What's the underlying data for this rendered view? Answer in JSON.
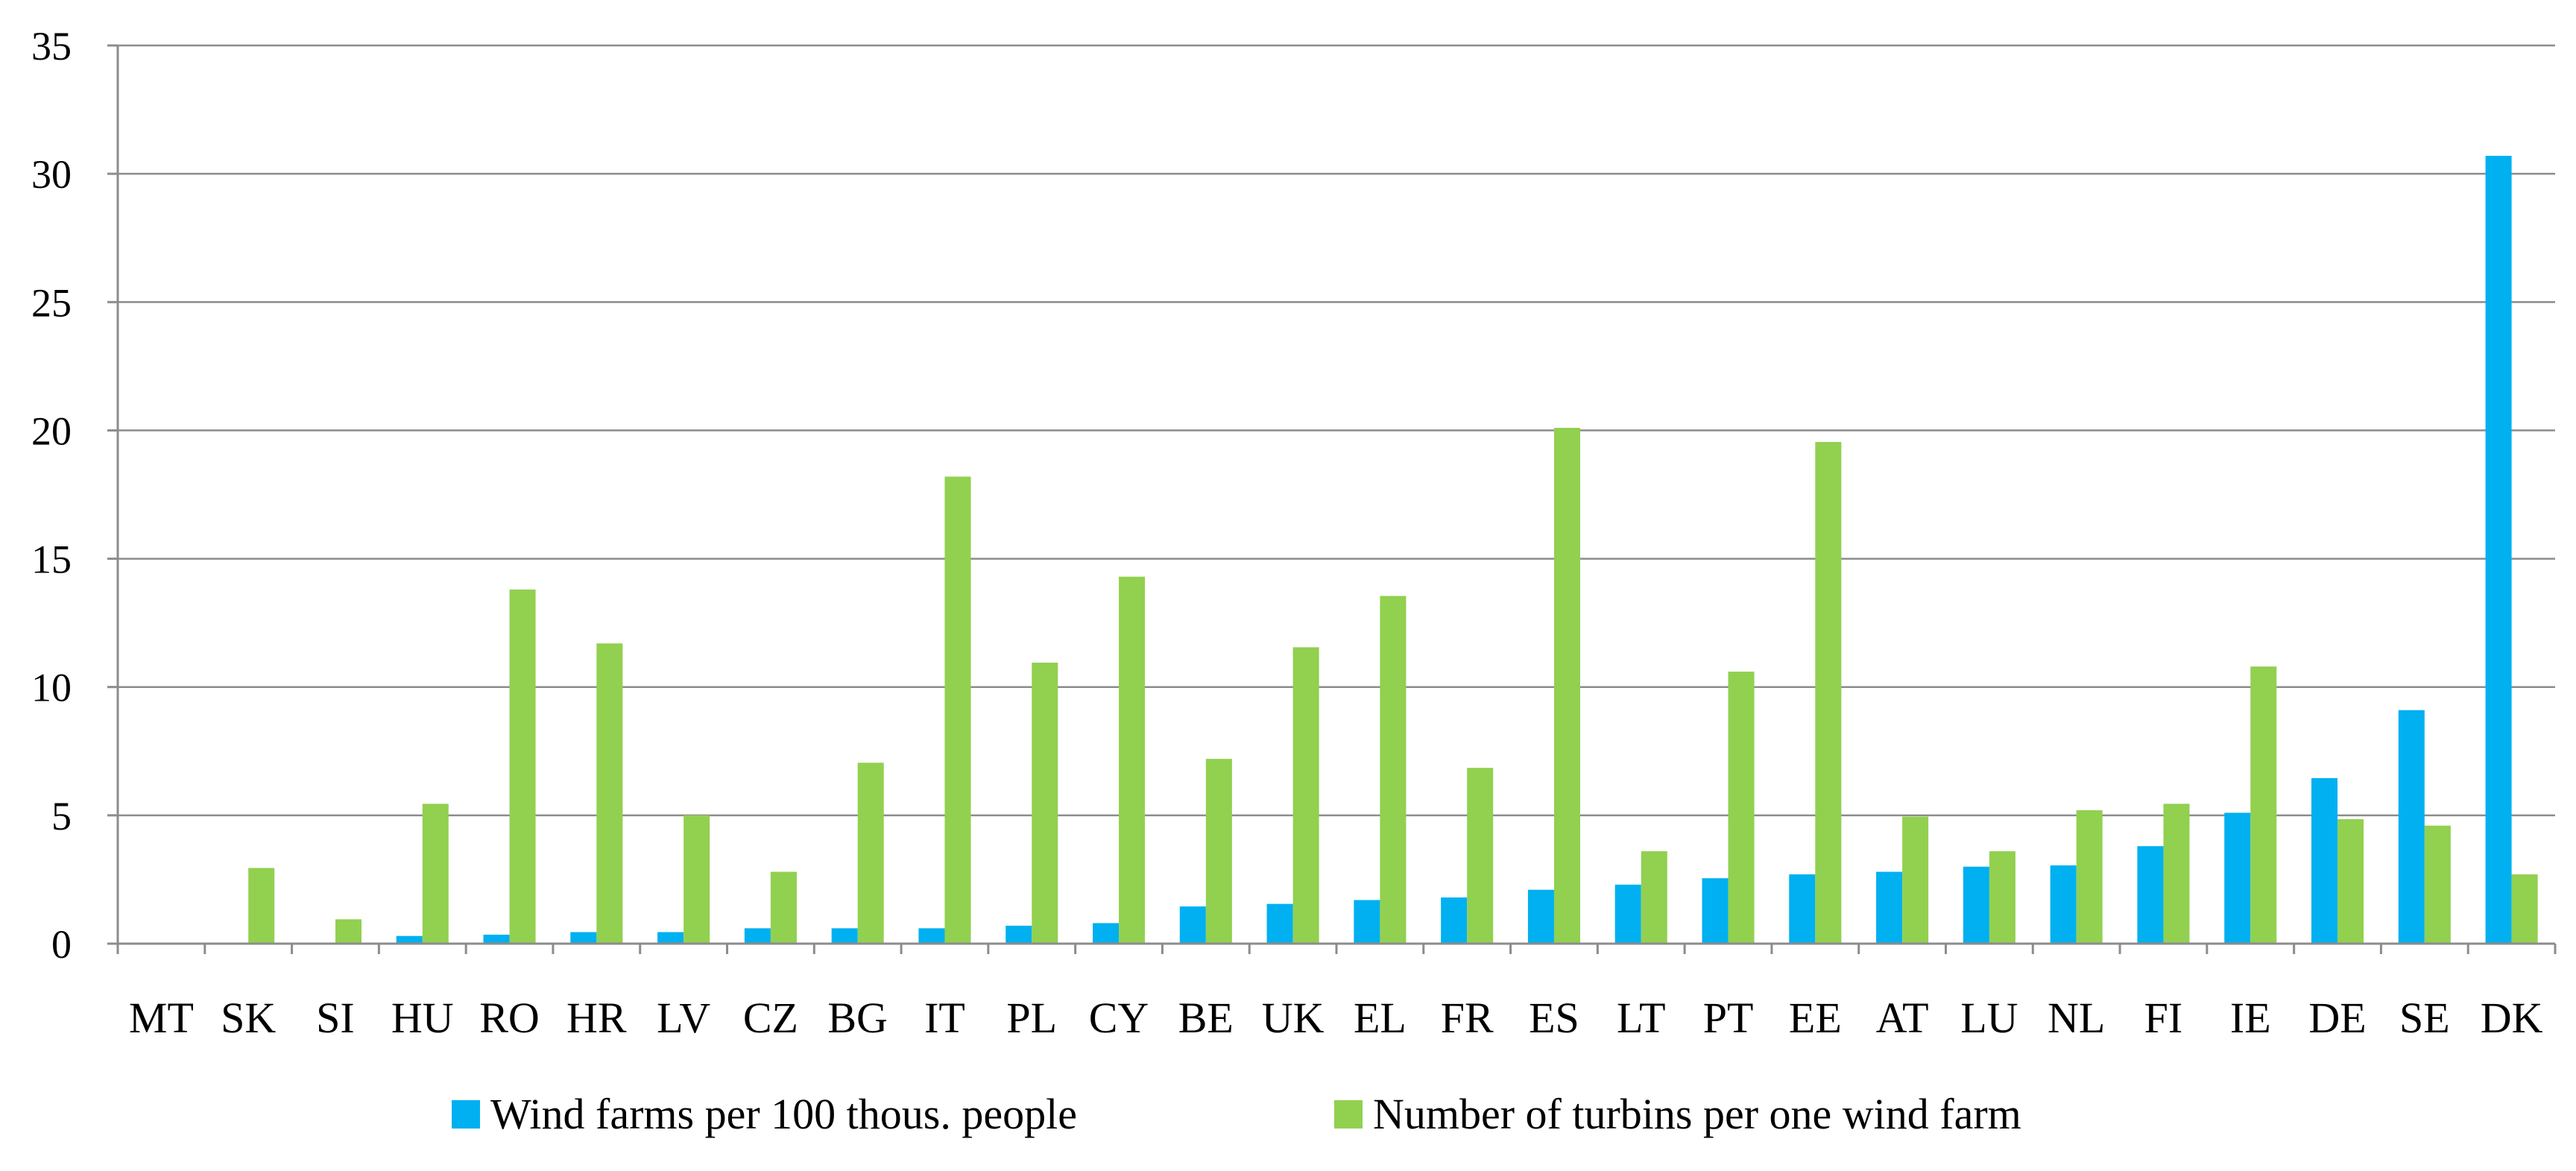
{
  "chart_data": {
    "type": "bar",
    "title": "",
    "xlabel": "",
    "ylabel": "",
    "ylim": [
      0,
      35
    ],
    "yticks": [
      0,
      5,
      10,
      15,
      20,
      25,
      30,
      35
    ],
    "grid": true,
    "legend_position": "bottom",
    "categories": [
      "MT",
      "SK",
      "SI",
      "HU",
      "RO",
      "HR",
      "LV",
      "CZ",
      "BG",
      "IT",
      "PL",
      "CY",
      "BE",
      "UK",
      "EL",
      "FR",
      "ES",
      "LT",
      "PT",
      "EE",
      "AT",
      "LU",
      "NL",
      "FI",
      "IE",
      "DE",
      "SE",
      "DK"
    ],
    "series": [
      {
        "name": "Wind farms per 100 thous. people",
        "color": "#00b0f0",
        "values": [
          0,
          0,
          0,
          0.3,
          0.35,
          0.45,
          0.45,
          0.6,
          0.6,
          0.6,
          0.7,
          0.8,
          1.45,
          1.55,
          1.7,
          1.8,
          2.1,
          2.3,
          2.55,
          2.7,
          2.8,
          3.0,
          3.05,
          3.8,
          5.1,
          6.45,
          9.1,
          30.7
        ]
      },
      {
        "name": "Number of turbins per one wind farm",
        "color": "#92d050",
        "values": [
          0,
          2.95,
          0.95,
          5.45,
          13.8,
          11.7,
          5.0,
          2.8,
          7.05,
          18.2,
          10.95,
          14.3,
          7.2,
          11.55,
          13.55,
          6.85,
          20.1,
          3.6,
          10.6,
          19.55,
          4.95,
          3.6,
          5.2,
          5.45,
          10.8,
          4.85,
          4.6,
          2.7
        ]
      }
    ]
  }
}
